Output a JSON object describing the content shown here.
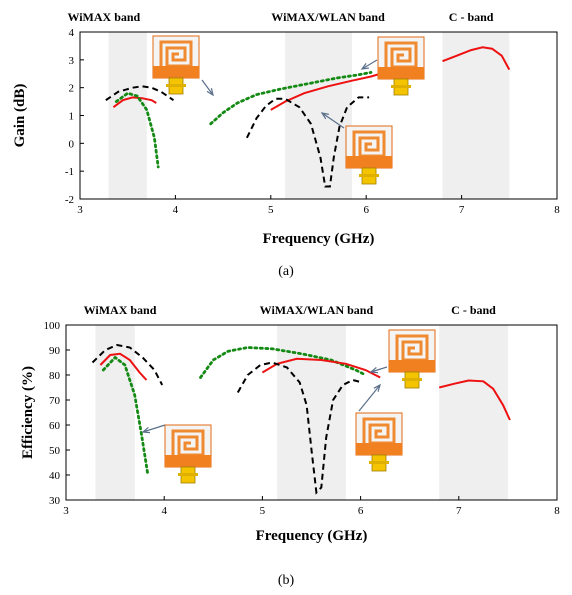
{
  "chart_data": [
    {
      "panel_label": "(a)",
      "type": "line",
      "xlabel": "Frequency (GHz)",
      "ylabel": "Gain (dB)",
      "xlim": [
        3,
        8
      ],
      "ylim": [
        -2,
        4
      ],
      "xticks": [
        "3",
        "4",
        "5",
        "6",
        "7",
        "8"
      ],
      "yticks": [
        "-2",
        "-1",
        "0",
        "1",
        "2",
        "3",
        "4"
      ],
      "band_labels": [
        {
          "text": "WiMAX band",
          "x": 3.25
        },
        {
          "text": "WiMAX/WLAN band",
          "x": 5.6
        },
        {
          "text": "C - band",
          "x": 7.1
        }
      ],
      "bands": [
        [
          3.3,
          3.7
        ],
        [
          5.15,
          5.85
        ],
        [
          6.8,
          7.5
        ]
      ],
      "series": [
        {
          "color": "#000000",
          "dash": "dashed",
          "points": [
            [
              3.27,
              1.55
            ],
            [
              3.4,
              1.85
            ],
            [
              3.55,
              2.0
            ],
            [
              3.65,
              2.05
            ],
            [
              3.75,
              2.0
            ],
            [
              3.85,
              1.85
            ],
            [
              3.98,
              1.55
            ]
          ]
        },
        {
          "color": "#ee1111",
          "dash": "solid",
          "points": [
            [
              3.35,
              1.3
            ],
            [
              3.45,
              1.55
            ],
            [
              3.55,
              1.65
            ],
            [
              3.65,
              1.62
            ],
            [
              3.75,
              1.55
            ],
            [
              3.8,
              1.45
            ]
          ]
        },
        {
          "color": "#148a14",
          "dash": "dotted",
          "points": [
            [
              3.38,
              1.5
            ],
            [
              3.5,
              1.8
            ],
            [
              3.6,
              1.7
            ],
            [
              3.7,
              1.2
            ],
            [
              3.78,
              0.2
            ],
            [
              3.82,
              -0.85
            ]
          ]
        },
        {
          "color": "#148a14",
          "dash": "dotted",
          "points": [
            [
              4.37,
              0.7
            ],
            [
              4.5,
              1.1
            ],
            [
              4.65,
              1.45
            ],
            [
              4.85,
              1.75
            ],
            [
              5.1,
              1.95
            ],
            [
              5.4,
              2.15
            ],
            [
              5.7,
              2.35
            ],
            [
              5.9,
              2.45
            ],
            [
              6.05,
              2.55
            ]
          ]
        },
        {
          "color": "#ee1111",
          "dash": "solid",
          "points": [
            [
              5.0,
              1.2
            ],
            [
              5.15,
              1.5
            ],
            [
              5.35,
              1.8
            ],
            [
              5.6,
              2.05
            ],
            [
              5.85,
              2.25
            ],
            [
              6.05,
              2.4
            ],
            [
              6.2,
              2.55
            ]
          ]
        },
        {
          "color": "#000000",
          "dash": "dashed",
          "points": [
            [
              4.75,
              0.2
            ],
            [
              4.85,
              0.9
            ],
            [
              4.95,
              1.35
            ],
            [
              5.05,
              1.6
            ],
            [
              5.15,
              1.6
            ],
            [
              5.3,
              1.3
            ],
            [
              5.42,
              0.7
            ],
            [
              5.52,
              -0.5
            ],
            [
              5.57,
              -1.55
            ],
            [
              5.62,
              -1.55
            ],
            [
              5.66,
              -0.5
            ],
            [
              5.72,
              0.6
            ],
            [
              5.8,
              1.3
            ],
            [
              5.92,
              1.65
            ],
            [
              6.03,
              1.65
            ]
          ]
        },
        {
          "color": "#ee1111",
          "dash": "solid",
          "points": [
            [
              6.8,
              2.95
            ],
            [
              6.95,
              3.15
            ],
            [
              7.1,
              3.35
            ],
            [
              7.22,
              3.45
            ],
            [
              7.32,
              3.4
            ],
            [
              7.42,
              3.15
            ],
            [
              7.5,
              2.65
            ]
          ]
        }
      ]
    },
    {
      "panel_label": "(b)",
      "type": "line",
      "xlabel": "Frequency (GHz)",
      "ylabel": "Efficiency (%)",
      "xlim": [
        3,
        8
      ],
      "ylim": [
        30,
        100
      ],
      "xticks": [
        "3",
        "4",
        "5",
        "6",
        "7",
        "8"
      ],
      "yticks": [
        "30",
        "40",
        "50",
        "60",
        "70",
        "80",
        "90",
        "100"
      ],
      "band_labels": [
        {
          "text": "WiMAX band",
          "x": 3.55
        },
        {
          "text": "WiMAX/WLAN band",
          "x": 5.55
        },
        {
          "text": "C - band",
          "x": 7.15
        }
      ],
      "bands": [
        [
          3.3,
          3.7
        ],
        [
          5.15,
          5.85
        ],
        [
          6.8,
          7.5
        ]
      ],
      "series": [
        {
          "color": "#000000",
          "dash": "dashed",
          "points": [
            [
              3.27,
              85
            ],
            [
              3.4,
              90
            ],
            [
              3.52,
              92
            ],
            [
              3.65,
              91
            ],
            [
              3.78,
              87
            ],
            [
              3.9,
              82
            ],
            [
              3.98,
              76
            ]
          ]
        },
        {
          "color": "#ee1111",
          "dash": "solid",
          "points": [
            [
              3.35,
              84
            ],
            [
              3.45,
              88
            ],
            [
              3.55,
              88.5
            ],
            [
              3.65,
              86
            ],
            [
              3.75,
              81
            ],
            [
              3.82,
              78
            ]
          ]
        },
        {
          "color": "#148a14",
          "dash": "dotted",
          "points": [
            [
              3.38,
              82
            ],
            [
              3.5,
              87
            ],
            [
              3.6,
              84
            ],
            [
              3.7,
              72
            ],
            [
              3.77,
              56
            ],
            [
              3.83,
              41
            ]
          ]
        },
        {
          "color": "#148a14",
          "dash": "dotted",
          "points": [
            [
              4.37,
              79
            ],
            [
              4.5,
              86
            ],
            [
              4.65,
              89.5
            ],
            [
              4.85,
              91
            ],
            [
              5.1,
              90.5
            ],
            [
              5.4,
              88.5
            ],
            [
              5.7,
              86
            ],
            [
              5.95,
              82
            ],
            [
              6.05,
              80
            ]
          ]
        },
        {
          "color": "#ee1111",
          "dash": "solid",
          "points": [
            [
              5.0,
              81
            ],
            [
              5.15,
              84.5
            ],
            [
              5.35,
              86.5
            ],
            [
              5.6,
              86
            ],
            [
              5.85,
              84.5
            ],
            [
              6.05,
              82
            ],
            [
              6.2,
              79
            ]
          ]
        },
        {
          "color": "#000000",
          "dash": "dashed",
          "points": [
            [
              4.75,
              73
            ],
            [
              4.85,
              80
            ],
            [
              4.98,
              84
            ],
            [
              5.1,
              85
            ],
            [
              5.25,
              83
            ],
            [
              5.38,
              77
            ],
            [
              5.45,
              68
            ],
            [
              5.5,
              50
            ],
            [
              5.55,
              33
            ],
            [
              5.6,
              35
            ],
            [
              5.65,
              55
            ],
            [
              5.72,
              70
            ],
            [
              5.82,
              76
            ],
            [
              5.92,
              78
            ],
            [
              6.02,
              77
            ]
          ]
        },
        {
          "color": "#ee1111",
          "dash": "solid",
          "points": [
            [
              6.8,
              75
            ],
            [
              6.95,
              76.5
            ],
            [
              7.1,
              77.8
            ],
            [
              7.25,
              77.5
            ],
            [
              7.35,
              74.5
            ],
            [
              7.45,
              68
            ],
            [
              7.52,
              62
            ]
          ]
        }
      ]
    }
  ]
}
